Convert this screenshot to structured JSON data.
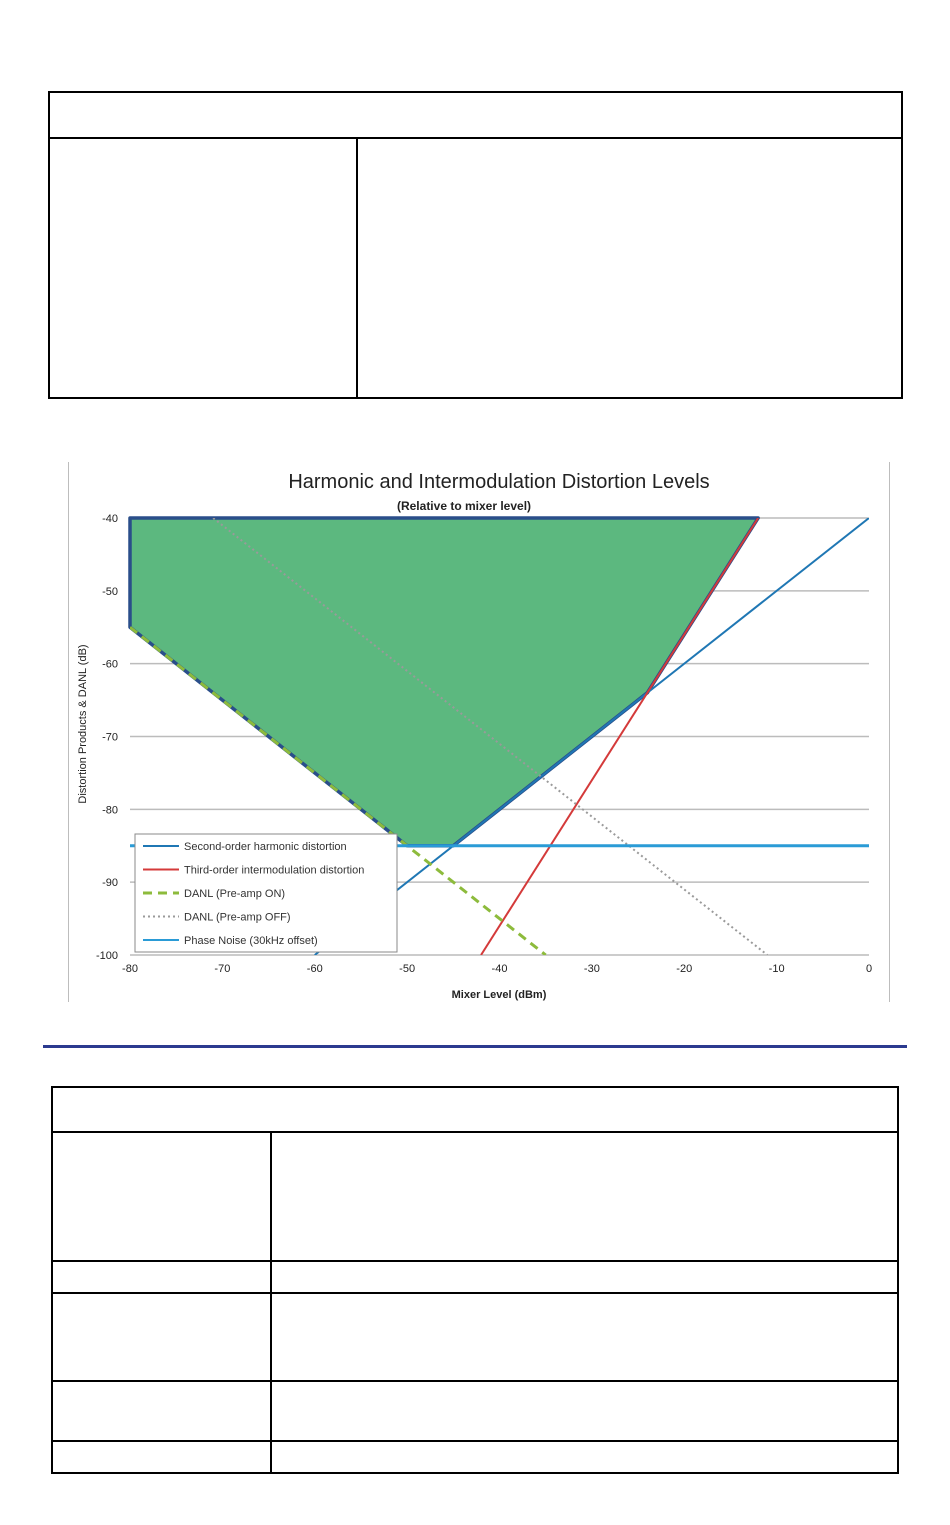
{
  "chart_data": {
    "type": "line",
    "title": "Harmonic  and Intermodulation Distortion Levels",
    "subtitle": "(Relative to mixer level)",
    "xlabel": "Mixer Level (dBm)",
    "ylabel": "Distortion Products & DANL (dB)",
    "xlim": [
      -80,
      0
    ],
    "ylim": [
      -100,
      -40
    ],
    "x_ticks": [
      -80,
      -70,
      -60,
      -50,
      -40,
      -30,
      -20,
      -10,
      0
    ],
    "y_ticks": [
      -40,
      -50,
      -60,
      -70,
      -80,
      -90,
      -100
    ],
    "grid": "horizontal",
    "legend_position": "bottom-left",
    "series": [
      {
        "name": "Second-order harmonic distortion",
        "color": "#1f77b4",
        "style": "solid",
        "points": [
          [
            -60,
            -100
          ],
          [
            0,
            -40
          ]
        ]
      },
      {
        "name": "Third-order intermodulation distortion",
        "color": "#d43a3a",
        "style": "solid",
        "points": [
          [
            -42,
            -100
          ],
          [
            -12,
            -40
          ]
        ]
      },
      {
        "name": "DANL (Pre-amp ON)",
        "color": "#8dbb3c",
        "style": "dashed",
        "points": [
          [
            -80,
            -55
          ],
          [
            -35,
            -100
          ]
        ]
      },
      {
        "name": "DANL (Pre-amp OFF)",
        "color": "#9a9a9a",
        "style": "dotted",
        "points": [
          [
            -71,
            -40
          ],
          [
            -11,
            -100
          ]
        ]
      },
      {
        "name": "Phase Noise (30kHz offset)",
        "color": "#2a9bd6",
        "style": "solid",
        "points": [
          [
            -80,
            -85
          ],
          [
            0,
            -85
          ]
        ]
      }
    ],
    "shaded_region": {
      "color": "#5cb87f",
      "outline": "#2a4e8a",
      "points": [
        [
          -80,
          -40
        ],
        [
          -12,
          -40
        ],
        [
          -24,
          -64
        ],
        [
          -45,
          -85
        ],
        [
          -50,
          -85
        ],
        [
          -80,
          -55
        ]
      ]
    }
  }
}
